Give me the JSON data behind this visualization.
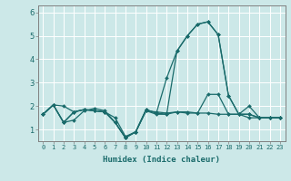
{
  "xlabel": "Humidex (Indice chaleur)",
  "bg_color": "#cce8e8",
  "line_color": "#1a6b6b",
  "grid_color": "#ffffff",
  "xlim": [
    -0.5,
    23.5
  ],
  "ylim": [
    0.5,
    6.3
  ],
  "yticks": [
    1,
    2,
    3,
    4,
    5,
    6
  ],
  "xtick_labels": [
    "0",
    "1",
    "2",
    "3",
    "4",
    "5",
    "6",
    "7",
    "8",
    "9",
    "10",
    "11",
    "12",
    "13",
    "14",
    "15",
    "16",
    "17",
    "18",
    "19",
    "20",
    "21",
    "22",
    "23"
  ],
  "series": [
    [
      1.65,
      2.05,
      2.0,
      1.75,
      1.85,
      1.8,
      1.75,
      1.5,
      0.7,
      0.9,
      1.8,
      1.75,
      1.7,
      1.75,
      1.75,
      1.7,
      1.7,
      1.65,
      1.65,
      1.65,
      1.5,
      1.5,
      1.5,
      1.5
    ],
    [
      1.65,
      2.05,
      1.3,
      1.4,
      1.8,
      1.9,
      1.8,
      1.3,
      0.65,
      0.9,
      1.85,
      1.7,
      1.65,
      1.75,
      1.7,
      1.7,
      2.5,
      2.5,
      1.65,
      1.65,
      2.0,
      1.5,
      1.5,
      1.5
    ],
    [
      1.65,
      2.05,
      1.3,
      1.75,
      1.85,
      1.8,
      1.75,
      1.3,
      0.65,
      0.9,
      1.8,
      1.65,
      1.65,
      4.35,
      5.0,
      5.5,
      5.6,
      5.05,
      2.45,
      1.65,
      1.65,
      1.5,
      1.5,
      1.5
    ],
    [
      1.65,
      2.05,
      1.3,
      1.75,
      1.85,
      1.8,
      1.75,
      1.3,
      0.65,
      0.9,
      1.85,
      1.7,
      3.2,
      4.35,
      5.0,
      5.5,
      5.6,
      5.05,
      2.45,
      1.65,
      1.65,
      1.5,
      1.5,
      1.5
    ]
  ],
  "figsize": [
    3.2,
    2.0
  ],
  "dpi": 100
}
